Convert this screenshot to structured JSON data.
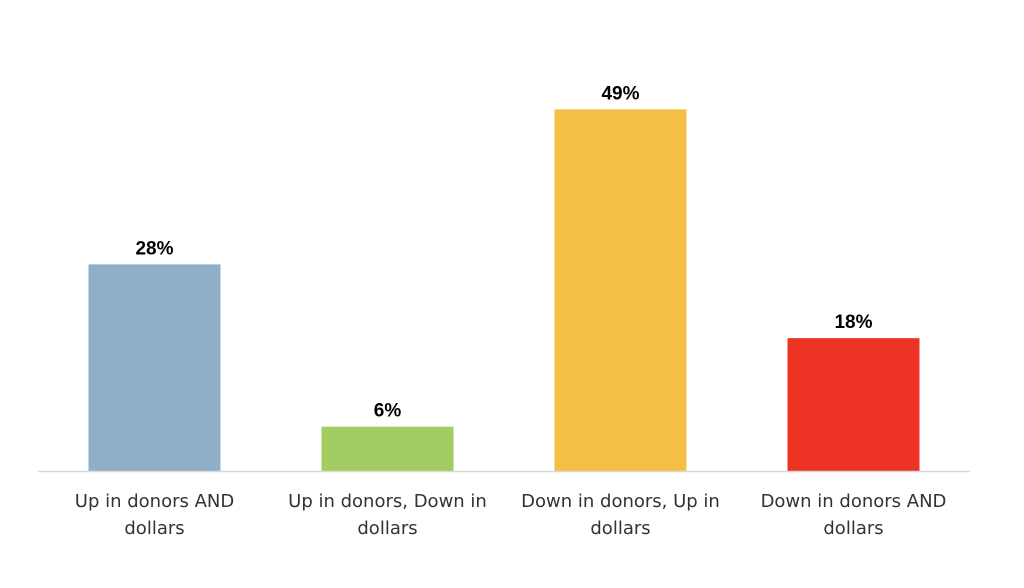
{
  "chart_data": {
    "type": "bar",
    "categories": [
      [
        "Up in donors AND",
        "dollars"
      ],
      [
        "Up in donors, Down in",
        "dollars"
      ],
      [
        "Down in donors, Up in",
        "dollars"
      ],
      [
        "Down in donors AND",
        "dollars"
      ]
    ],
    "values": [
      28,
      6,
      49,
      18
    ],
    "value_labels": [
      "28%",
      "6%",
      "49%",
      "18%"
    ],
    "colors": [
      "#8FAFC8",
      "#A2CD62",
      "#F4BF45",
      "#EC3324"
    ],
    "axis_color": "#D9D9D9",
    "ylim": [
      0,
      50
    ],
    "grid": false,
    "legend": "none",
    "title": "",
    "xlabel": "",
    "ylabel": ""
  }
}
